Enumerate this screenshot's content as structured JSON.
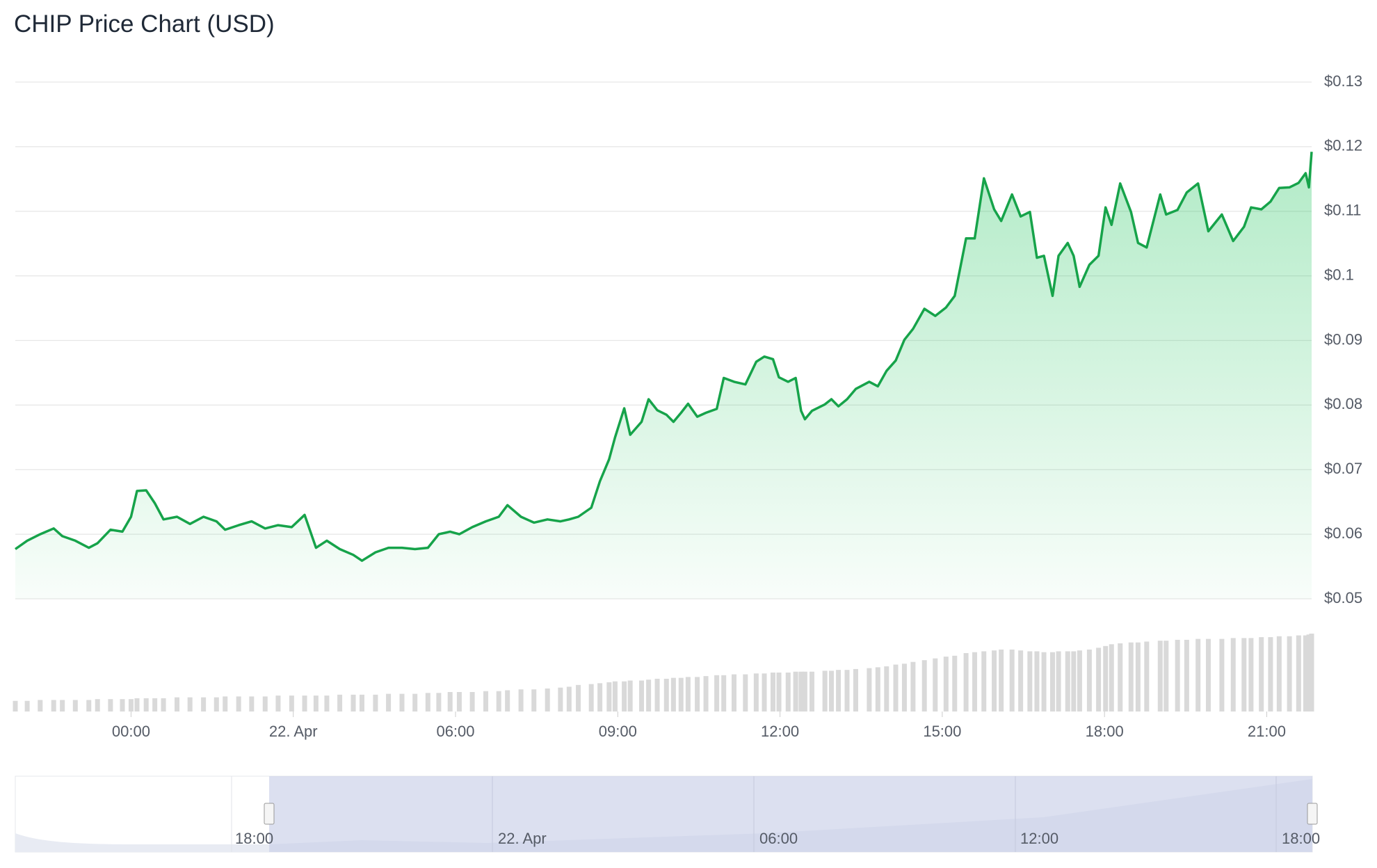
{
  "chart_data": {
    "type": "line",
    "title": "CHIP Price Chart (USD)",
    "color": "#16a34a",
    "grid": true,
    "x": [
      -2.14,
      -1.92,
      -1.68,
      -1.43,
      -1.27,
      -1.03,
      -0.78,
      -0.62,
      -0.38,
      -0.16,
      0,
      0.11,
      0.28,
      0.44,
      0.6,
      0.85,
      1.09,
      1.34,
      1.58,
      1.74,
      1.99,
      2.23,
      2.48,
      2.72,
      2.97,
      3.21,
      3.42,
      3.62,
      3.86,
      4.11,
      4.27,
      4.52,
      4.76,
      5.01,
      5.25,
      5.49,
      5.69,
      5.9,
      6.07,
      6.31,
      6.56,
      6.8,
      6.96,
      7.21,
      7.45,
      7.7,
      7.94,
      8.1,
      8.27,
      8.51,
      8.67,
      8.84,
      8.95,
      9.12,
      9.23,
      9.44,
      9.57,
      9.73,
      9.9,
      10.03,
      10.17,
      10.3,
      10.47,
      10.63,
      10.83,
      10.96,
      11.15,
      11.36,
      11.56,
      11.71,
      11.87,
      11.98,
      12.15,
      12.29,
      12.39,
      12.46,
      12.59,
      12.83,
      12.95,
      13.08,
      13.24,
      13.4,
      13.65,
      13.81,
      13.97,
      14.14,
      14.3,
      14.46,
      14.67,
      14.87,
      15.07,
      15.23,
      15.44,
      15.6,
      15.77,
      15.96,
      16.09,
      16.29,
      16.45,
      16.62,
      16.75,
      16.88,
      17.04,
      17.15,
      17.32,
      17.43,
      17.54,
      17.72,
      17.89,
      18.02,
      18.13,
      18.29,
      18.49,
      18.62,
      18.78,
      19.03,
      19.14,
      19.35,
      19.52,
      19.73,
      19.92,
      20.17,
      20.38,
      20.58,
      20.71,
      20.9,
      21.07,
      21.23,
      21.42,
      21.59,
      21.72,
      21.78,
      21.83
    ],
    "values": [
      0.0577,
      0.059,
      0.06,
      0.0609,
      0.0597,
      0.059,
      0.0579,
      0.0586,
      0.0607,
      0.0604,
      0.0627,
      0.0667,
      0.0668,
      0.0648,
      0.0623,
      0.0627,
      0.0616,
      0.0627,
      0.062,
      0.0607,
      0.0614,
      0.062,
      0.0609,
      0.0614,
      0.0611,
      0.063,
      0.0579,
      0.059,
      0.0577,
      0.0568,
      0.0559,
      0.0572,
      0.0579,
      0.0579,
      0.0577,
      0.0579,
      0.06,
      0.0604,
      0.06,
      0.0611,
      0.062,
      0.0627,
      0.0645,
      0.0627,
      0.0618,
      0.0623,
      0.062,
      0.0623,
      0.0627,
      0.0641,
      0.0682,
      0.0716,
      0.075,
      0.0795,
      0.0754,
      0.0774,
      0.0809,
      0.0792,
      0.0785,
      0.0774,
      0.0788,
      0.0802,
      0.0782,
      0.0788,
      0.0794,
      0.0842,
      0.0836,
      0.0832,
      0.0867,
      0.0875,
      0.0871,
      0.0843,
      0.0836,
      0.0842,
      0.0791,
      0.0778,
      0.0791,
      0.0801,
      0.0809,
      0.0798,
      0.0809,
      0.0825,
      0.0836,
      0.0829,
      0.0853,
      0.0869,
      0.0901,
      0.0918,
      0.0949,
      0.0938,
      0.0951,
      0.0969,
      0.1058,
      0.1058,
      0.1151,
      0.1103,
      0.1085,
      0.1126,
      0.1092,
      0.1099,
      0.1028,
      0.1031,
      0.0969,
      0.1031,
      0.1051,
      0.1031,
      0.0983,
      0.1017,
      0.1031,
      0.1106,
      0.1079,
      0.1143,
      0.1099,
      0.1051,
      0.1044,
      0.1126,
      0.1095,
      0.1102,
      0.1129,
      0.1143,
      0.1069,
      0.1095,
      0.1054,
      0.1076,
      0.1106,
      0.1103,
      0.1115,
      0.1136,
      0.1137,
      0.1144,
      0.1159,
      0.1137,
      0.1192
    ],
    "volume": [
      12,
      12,
      13,
      13,
      13,
      13,
      13,
      14,
      14,
      14,
      14,
      15,
      15,
      15,
      15,
      16,
      16,
      16,
      16,
      17,
      17,
      17,
      17,
      18,
      18,
      18,
      18,
      18,
      19,
      19,
      19,
      19,
      20,
      20,
      20,
      21,
      21,
      22,
      22,
      22,
      23,
      23,
      24,
      25,
      25,
      26,
      27,
      28,
      30,
      31,
      32,
      33,
      34,
      34,
      35,
      35,
      36,
      37,
      37,
      38,
      38,
      39,
      39,
      40,
      41,
      41,
      42,
      42,
      43,
      43,
      44,
      44,
      44,
      45,
      45,
      45,
      45,
      46,
      46,
      47,
      47,
      48,
      49,
      50,
      51,
      53,
      54,
      56,
      58,
      60,
      62,
      63,
      66,
      67,
      68,
      69,
      70,
      70,
      69,
      68,
      68,
      67,
      67,
      68,
      68,
      68,
      69,
      70,
      72,
      74,
      76,
      77,
      78,
      78,
      79,
      80,
      80,
      81,
      81,
      82,
      82,
      82,
      83,
      83,
      83,
      84,
      84,
      85,
      85,
      86,
      86,
      87,
      88
    ],
    "xlim": [
      -2.14,
      21.83
    ],
    "xticks": [
      {
        "value": 0,
        "label": "00:00"
      },
      {
        "value": 3,
        "label": "22. Apr"
      },
      {
        "value": 6,
        "label": "06:00"
      },
      {
        "value": 9,
        "label": "09:00"
      },
      {
        "value": 12,
        "label": "12:00"
      },
      {
        "value": 15,
        "label": "15:00"
      },
      {
        "value": 18,
        "label": "18:00"
      },
      {
        "value": 21,
        "label": "21:00"
      }
    ],
    "ylim": [
      0.05,
      0.13
    ],
    "yticks": [
      {
        "value": 0.05,
        "label": "$0.05"
      },
      {
        "value": 0.06,
        "label": "$0.06"
      },
      {
        "value": 0.07,
        "label": "$0.07"
      },
      {
        "value": 0.08,
        "label": "$0.08"
      },
      {
        "value": 0.09,
        "label": "$0.09"
      },
      {
        "value": 0.1,
        "label": "$0.1"
      },
      {
        "value": 0.11,
        "label": "$0.11"
      },
      {
        "value": 0.12,
        "label": "$0.12"
      },
      {
        "value": 0.13,
        "label": "$0.13"
      }
    ],
    "navigator_labels": [
      "18:00",
      "22. Apr",
      "06:00",
      "12:00",
      "18:00"
    ]
  }
}
